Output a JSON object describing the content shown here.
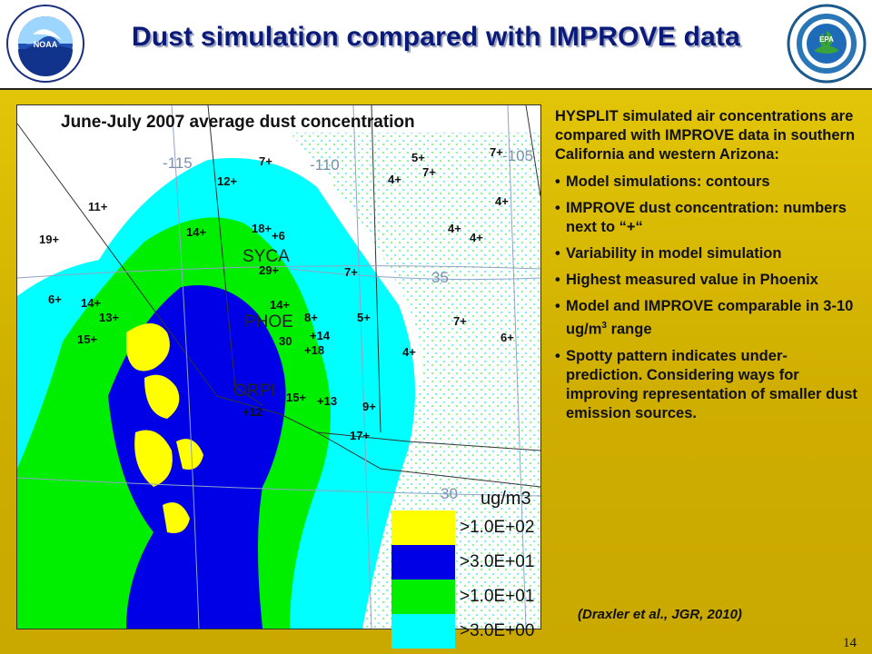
{
  "title": "Dust simulation compared with IMPROVE data",
  "logos": {
    "left": "NOAA",
    "right": "EPA"
  },
  "map": {
    "title": "June-July 2007 average dust concentration",
    "longitudes": [
      "-115",
      "-110",
      "-105"
    ],
    "latitudes": [
      "35",
      "30"
    ],
    "sites": [
      "SYCA",
      "PHOE",
      "ORPI"
    ],
    "improve_values": [
      "19+",
      "11+",
      "12+",
      "7+",
      "5+",
      "7+",
      "7+",
      "4+",
      "4+",
      "4+",
      "4+",
      "14+",
      "18+",
      "+6",
      "29+",
      "14+",
      "6+",
      "14+",
      "13+",
      "15+",
      "7+",
      "8+",
      "5+",
      "7+",
      "6+",
      "30",
      "+14",
      "+18",
      "4+",
      "15+",
      "+13",
      "+12",
      "9+",
      "17+"
    ],
    "legend": {
      "unit": "ug/m3",
      "items": [
        {
          "label": ">1.0E+02",
          "color": "#ffff00"
        },
        {
          "label": ">3.0E+01",
          "color": "#0000e6"
        },
        {
          "label": ">1.0E+01",
          "color": "#00ee00"
        },
        {
          "label": ">3.0E+00",
          "color": "#00ffff"
        }
      ]
    }
  },
  "text": {
    "intro": "HYSPLIT simulated air concentrations are compared with IMPROVE data in southern California and western Arizona:",
    "bullets": [
      "Model simulations: contours",
      "IMPROVE dust concentration: numbers next to “+“",
      "Variability in model simulation",
      "Highest measured value in Phoenix",
      "Model and IMPROVE comparable in 3-10 ug/m",
      "Spotty pattern indicates under-prediction. Considering ways for improving representation of smaller dust emission sources."
    ],
    "bullet5_sup": "3",
    "bullet5_tail": " range"
  },
  "citation": "(Draxler et al., JGR, 2010)",
  "page_number": "14"
}
